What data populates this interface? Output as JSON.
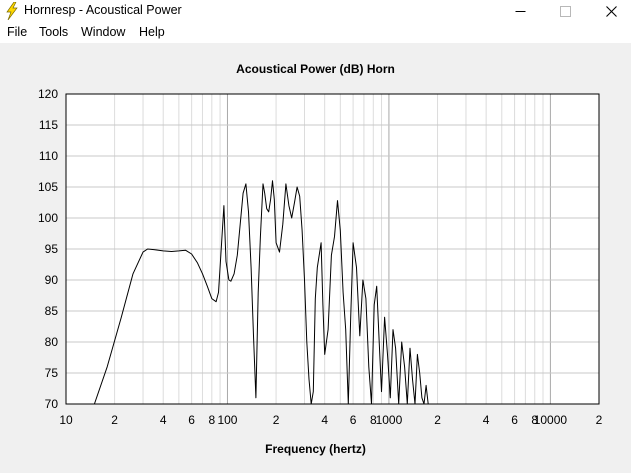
{
  "window": {
    "title": "Hornresp - Acoustical Power"
  },
  "menu": [
    "File",
    "Tools",
    "Window",
    "Help"
  ],
  "chart_data": {
    "type": "line",
    "title": "Acoustical Power (dB)    Horn",
    "xlabel": "Frequency (hertz)",
    "ylabel": "",
    "x_scale": "log",
    "xlim": [
      10,
      20000
    ],
    "ylim": [
      70,
      120
    ],
    "grid": true,
    "y_ticks": [
      120,
      115,
      110,
      105,
      100,
      95,
      90,
      85,
      80,
      75,
      70
    ],
    "x_tick_labels": [
      {
        "x": 10,
        "label": "10"
      },
      {
        "x": 20,
        "label": "2"
      },
      {
        "x": 40,
        "label": "4"
      },
      {
        "x": 60,
        "label": "6"
      },
      {
        "x": 80,
        "label": "8"
      },
      {
        "x": 100,
        "label": "100"
      },
      {
        "x": 200,
        "label": "2"
      },
      {
        "x": 400,
        "label": "4"
      },
      {
        "x": 600,
        "label": "6"
      },
      {
        "x": 800,
        "label": "8"
      },
      {
        "x": 1000,
        "label": "1000"
      },
      {
        "x": 2000,
        "label": "2"
      },
      {
        "x": 4000,
        "label": "4"
      },
      {
        "x": 6000,
        "label": "6"
      },
      {
        "x": 8000,
        "label": "8"
      },
      {
        "x": 10000,
        "label": "10000"
      },
      {
        "x": 20000,
        "label": "2"
      }
    ],
    "series": [
      {
        "color": "#000000",
        "x": [
          15,
          18,
          22,
          26,
          30,
          32,
          35,
          40,
          45,
          50,
          55,
          60,
          65,
          70,
          75,
          80,
          85,
          88,
          92,
          95,
          98,
          102,
          105,
          110,
          115,
          120,
          125,
          130,
          135,
          140,
          145,
          150,
          155,
          160,
          166,
          170,
          175,
          180,
          185,
          190,
          195,
          200,
          210,
          220,
          230,
          240,
          250,
          260,
          270,
          280,
          290,
          300,
          310,
          320,
          330,
          340,
          350,
          360,
          370,
          380,
          390,
          400,
          420,
          440,
          460,
          480,
          500,
          520,
          540,
          560,
          580,
          600,
          630,
          660,
          690,
          720,
          750,
          780,
          810,
          840,
          870,
          900,
          940,
          980,
          1020,
          1060,
          1100,
          1150,
          1200,
          1250,
          1300,
          1350,
          1400,
          1450,
          1500,
          1550,
          1600,
          1650,
          1700,
          1750,
          1800,
          20000
        ],
        "y": [
          70.0,
          76.0,
          84.0,
          91.0,
          94.5,
          95.0,
          94.9,
          94.7,
          94.6,
          94.7,
          94.8,
          94.2,
          92.8,
          91.0,
          89.0,
          87.0,
          86.5,
          88.0,
          96.0,
          102.0,
          93.0,
          90.0,
          89.8,
          91.0,
          94.0,
          99.0,
          104.0,
          105.5,
          101.0,
          92.0,
          81.0,
          71.0,
          88.0,
          97.0,
          105.5,
          104.0,
          101.5,
          101.0,
          103.0,
          106.0,
          103.0,
          96.0,
          94.5,
          99.0,
          105.5,
          102.0,
          100.0,
          102.5,
          105.0,
          103.5,
          98.0,
          90.0,
          80.0,
          74.0,
          70.0,
          72.0,
          87.0,
          92.0,
          94.0,
          96.0,
          86.0,
          78.0,
          82.0,
          94.0,
          97.0,
          102.8,
          98.0,
          88.0,
          82.0,
          70.0,
          84.0,
          96.0,
          92.0,
          81.0,
          90.0,
          87.0,
          76.0,
          70.0,
          86.0,
          89.0,
          80.0,
          72.0,
          84.0,
          78.0,
          71.0,
          82.0,
          79.0,
          70.0,
          80.0,
          76.0,
          70.0,
          79.0,
          74.0,
          70.0,
          78.0,
          75.0,
          71.0,
          70.0,
          73.0,
          70.0,
          70.0,
          70.0
        ]
      }
    ]
  }
}
